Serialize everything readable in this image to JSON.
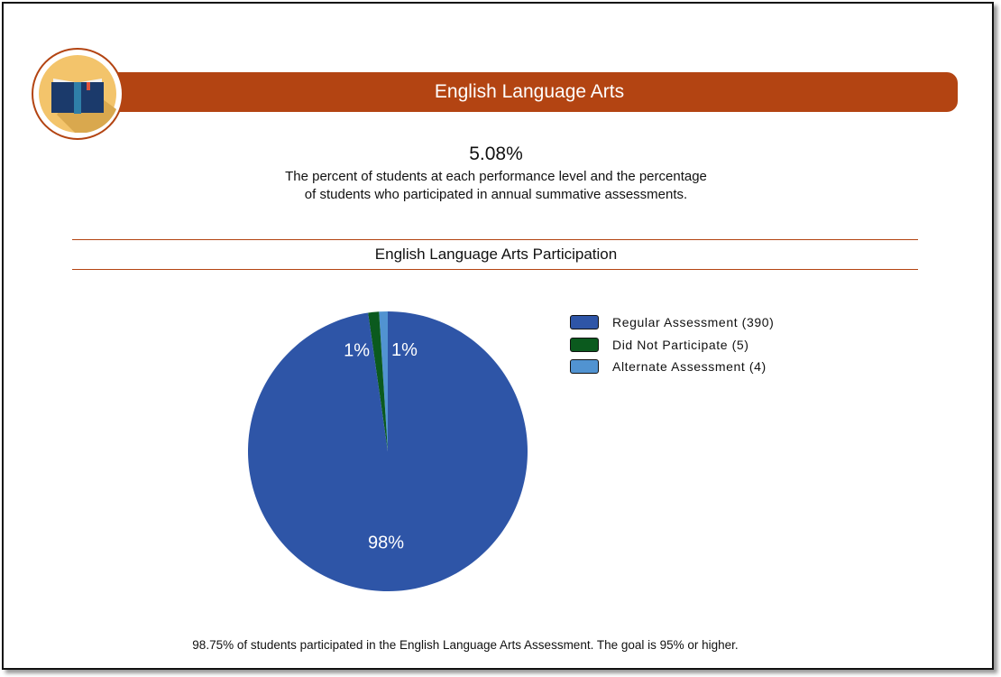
{
  "header": {
    "title": "English Language Arts",
    "icon": "open-book-icon"
  },
  "summary": {
    "value": "5.08%",
    "line1": "The percent of students at each performance level and the percentage",
    "line2": "of students who participated in annual summative assessments."
  },
  "section_title": "English Language Arts Participation",
  "footer": "98.75% of students participated in the English Language Arts Assessment. The goal is 95% or higher.",
  "chart_data": {
    "type": "pie",
    "title": "",
    "slices": [
      {
        "label": "Regular Assessment (390)",
        "value": 390,
        "pct_label": "98%",
        "color": "#2e55a7"
      },
      {
        "label": "Did Not Participate (5)",
        "value": 5,
        "pct_label": "1%",
        "color": "#0b5a1e"
      },
      {
        "label": "Alternate Assessment (4)",
        "value": 4,
        "pct_label": "1%",
        "color": "#5193d1"
      }
    ],
    "legend_position": "right"
  }
}
